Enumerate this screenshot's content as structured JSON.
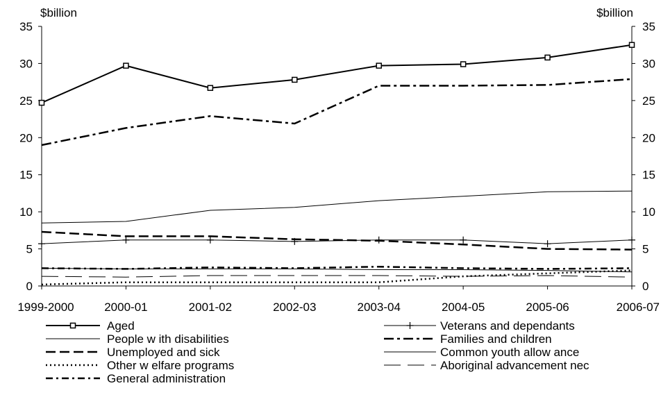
{
  "chart_data": {
    "type": "line",
    "ylabel_left": "$billion",
    "ylabel_right": "$billion",
    "ylim": [
      0,
      35
    ],
    "yticks": [
      0,
      5,
      10,
      15,
      20,
      25,
      30,
      35
    ],
    "yticklabels": [
      "0",
      "5",
      "10",
      "15",
      "20",
      "25",
      "30",
      "35"
    ],
    "categories": [
      "1999-2000",
      "2000-01",
      "2001-02",
      "2002-03",
      "2003-04",
      "2004-05",
      "2005-06",
      "2006-07"
    ],
    "grid": false,
    "legend_position": "bottom",
    "series": [
      {
        "name": "Aged",
        "style": "solid-square",
        "values": [
          24.7,
          29.7,
          26.7,
          27.8,
          29.7,
          29.9,
          30.8,
          32.5
        ]
      },
      {
        "name": "Veterans and dependants",
        "style": "solid-plus",
        "values": [
          5.7,
          6.2,
          6.2,
          6.0,
          6.2,
          6.2,
          5.7,
          6.2
        ]
      },
      {
        "name": "People w ith disabilities",
        "style": "solid-thin",
        "values": [
          8.5,
          8.7,
          10.2,
          10.6,
          11.5,
          12.1,
          12.7,
          12.8
        ]
      },
      {
        "name": "Families and children",
        "style": "dashdot-heavy",
        "values": [
          19.0,
          21.3,
          22.9,
          21.9,
          27.0,
          27.0,
          27.1,
          27.9
        ]
      },
      {
        "name": "Unemployed and sick",
        "style": "dash-long",
        "values": [
          7.3,
          6.7,
          6.7,
          6.3,
          6.1,
          5.6,
          5.0,
          4.9
        ]
      },
      {
        "name": "Common youth allow ance",
        "style": "solid-thin",
        "values": [
          2.4,
          2.3,
          2.3,
          2.3,
          2.2,
          2.2,
          2.1,
          1.9
        ]
      },
      {
        "name": "Other w elfare programs",
        "style": "dotted",
        "values": [
          0.2,
          0.5,
          0.5,
          0.5,
          0.5,
          1.3,
          1.7,
          2.1
        ]
      },
      {
        "name": "Aboriginal advancement nec",
        "style": "dash-gap",
        "values": [
          1.3,
          1.2,
          1.4,
          1.4,
          1.4,
          1.3,
          1.4,
          1.2
        ]
      },
      {
        "name": "General administration",
        "style": "dashdot",
        "values": [
          2.4,
          2.3,
          2.5,
          2.4,
          2.6,
          2.4,
          2.3,
          2.4
        ]
      }
    ]
  }
}
